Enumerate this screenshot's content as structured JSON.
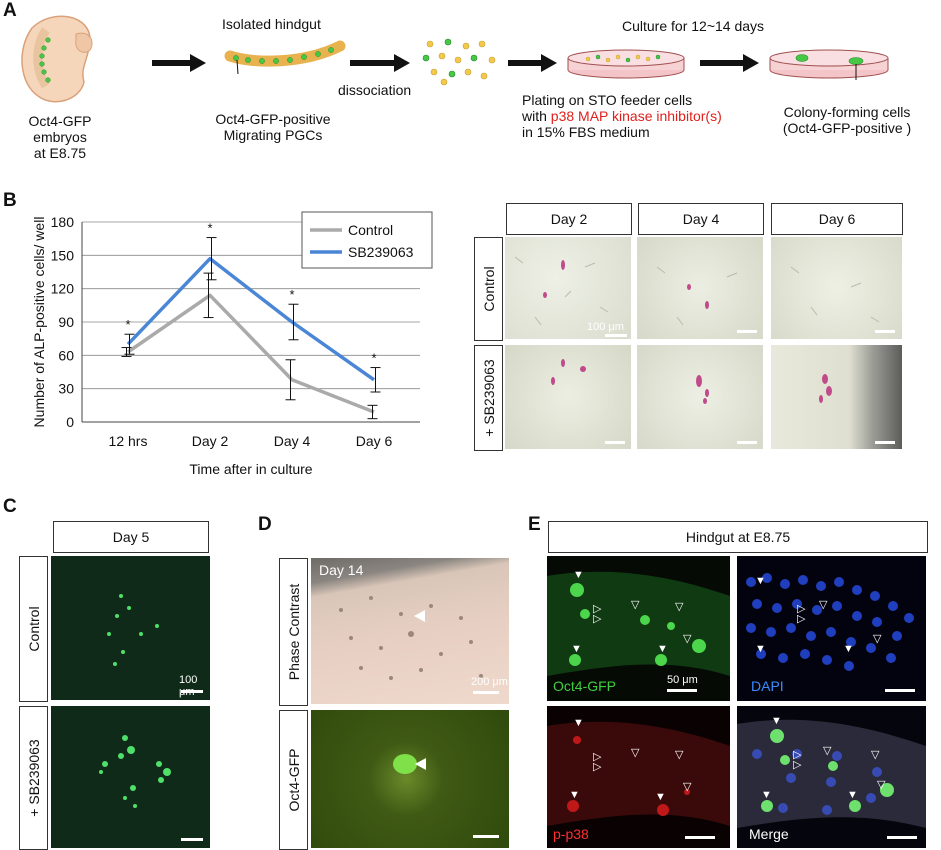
{
  "panels": {
    "a": "A",
    "b": "B",
    "c": "C",
    "d": "D",
    "e": "E"
  },
  "panelA": {
    "embryo_label_1": "Oct4-GFP embryos",
    "embryo_label_2": "at E8.75",
    "hindgut_title": "Isolated hindgut",
    "hindgut_label_1": "Oct4-GFP-positive",
    "hindgut_label_2": "Migrating PGCs",
    "dissociation": "dissociation",
    "plating_1": "Plating on STO feeder cells",
    "plating_2a": "with ",
    "plating_2b": "p38 MAP kinase inhibitor(s)",
    "plating_3": "in 15% FBS medium",
    "culture": "Culture for 12~14 days",
    "colony_1": "Colony-forming cells",
    "colony_2": "(Oct4-GFP-positive )"
  },
  "panelB": {
    "col_headers": [
      "Day 2",
      "Day 4",
      "Day 6"
    ],
    "row_labels": [
      "Control",
      "+ SB239063"
    ],
    "scale": "100 μm"
  },
  "chart_data": {
    "type": "line",
    "categories": [
      "12 hrs",
      "Day 2",
      "Day 4",
      "Day 6"
    ],
    "xlabel": "Time after in culture",
    "ylabel": "Number of ALP-positive cells/ well",
    "ylim": [
      0,
      180
    ],
    "yticks": [
      0,
      30,
      60,
      90,
      120,
      150,
      180
    ],
    "grid": true,
    "legend_position": "top-right",
    "series": [
      {
        "name": "Control",
        "values": [
          63,
          114,
          38,
          9
        ],
        "errors": [
          4,
          20,
          18,
          6
        ],
        "color": "#aaaaaa"
      },
      {
        "name": "SB239063",
        "values": [
          70,
          147,
          90,
          38
        ],
        "errors": [
          9,
          19,
          16,
          11
        ],
        "color": "#4a86d6"
      }
    ],
    "significance": [
      "*",
      "*",
      "*",
      "*"
    ]
  },
  "panelC": {
    "header": "Day 5",
    "rows": [
      "Control",
      "+ SB239063"
    ],
    "scale": "100 μm"
  },
  "panelD": {
    "rows": [
      "Phase Contrast",
      "Oct4-GFP"
    ],
    "day": "Day 14",
    "scale": "200 μm"
  },
  "panelE": {
    "header": "Hindgut at E8.75",
    "labels": {
      "gfp": "Oct4-GFP",
      "dapi": "DAPI",
      "p38": "p-p38",
      "merge": "Merge"
    },
    "scale": "50 μm",
    "colors": {
      "gfp": "#3ecf3e",
      "dapi": "#3a8cff",
      "p38": "#ff3030",
      "merge": "#ffffff"
    }
  }
}
